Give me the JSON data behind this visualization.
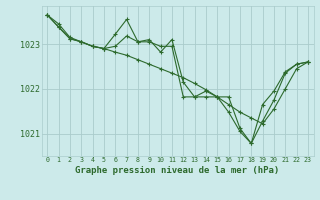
{
  "title": "Graphe pression niveau de la mer (hPa)",
  "bg_color": "#cceaea",
  "grid_color": "#aacccc",
  "line_color": "#2d6a2d",
  "xlim": [
    -0.5,
    23.5
  ],
  "ylim": [
    1020.5,
    1023.85
  ],
  "yticks": [
    1021,
    1022,
    1023
  ],
  "xticks": [
    0,
    1,
    2,
    3,
    4,
    5,
    6,
    7,
    8,
    9,
    10,
    11,
    12,
    13,
    14,
    15,
    16,
    17,
    18,
    19,
    20,
    21,
    22,
    23
  ],
  "series": [
    [
      1023.65,
      1023.45,
      1023.15,
      1023.05,
      1022.95,
      1022.9,
      1022.82,
      1022.75,
      1022.65,
      1022.55,
      1022.45,
      1022.35,
      1022.25,
      1022.12,
      1021.98,
      1021.82,
      1021.65,
      1021.48,
      1021.35,
      1021.22,
      1021.55,
      1022.0,
      1022.45,
      1022.6
    ],
    [
      1023.65,
      1023.38,
      1023.12,
      1023.05,
      1022.95,
      1022.9,
      1022.95,
      1023.18,
      1023.05,
      1023.05,
      1022.95,
      1022.95,
      1021.82,
      1021.82,
      1021.95,
      1021.82,
      1021.82,
      1021.12,
      1020.78,
      1021.65,
      1021.95,
      1022.38,
      1022.55,
      1022.6
    ],
    [
      1023.65,
      1023.38,
      1023.12,
      1023.05,
      1022.95,
      1022.9,
      1023.22,
      1023.55,
      1023.05,
      1023.1,
      1022.82,
      1023.1,
      1022.15,
      1021.82,
      1021.82,
      1021.82,
      1021.48,
      1021.05,
      1020.78,
      1021.28,
      1021.75,
      1022.35,
      1022.55,
      1022.6
    ]
  ]
}
